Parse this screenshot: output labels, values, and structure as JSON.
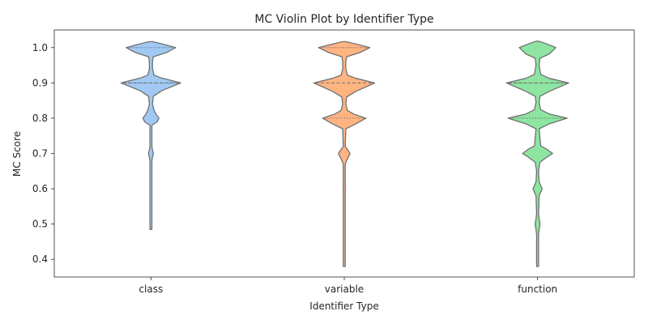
{
  "chart_data": {
    "type": "violin",
    "title": "MC Violin Plot by Identifier Type",
    "xlabel": "Identifier Type",
    "ylabel": "MC Score",
    "ylim": [
      0.35,
      1.05
    ],
    "yticks": [
      0.4,
      0.5,
      0.6,
      0.7,
      0.8,
      0.9,
      1.0
    ],
    "ytick_labels": [
      "0.4",
      "0.5",
      "0.6",
      "0.7",
      "0.8",
      "0.9",
      "1.0"
    ],
    "categories": [
      "class",
      "variable",
      "function"
    ],
    "grid": false,
    "colors": {
      "class": "#a1c9f4",
      "variable": "#ffb482",
      "function": "#8de5a1",
      "outline": "#707070"
    },
    "violins": [
      {
        "category": "class",
        "y_min": 0.485,
        "y_max": 1.017,
        "q1": 0.9,
        "median": 0.9,
        "q3": 1.0,
        "profile": [
          [
            0.485,
            0.004
          ],
          [
            0.59,
            0.006
          ],
          [
            0.6,
            0.012
          ],
          [
            0.61,
            0.006
          ],
          [
            0.68,
            0.006
          ],
          [
            0.69,
            0.02
          ],
          [
            0.7,
            0.032
          ],
          [
            0.71,
            0.02
          ],
          [
            0.72,
            0.006
          ],
          [
            0.78,
            0.01
          ],
          [
            0.79,
            0.08
          ],
          [
            0.8,
            0.103
          ],
          [
            0.81,
            0.07
          ],
          [
            0.822,
            0.04
          ],
          [
            0.84,
            0.02
          ],
          [
            0.862,
            0.03
          ],
          [
            0.878,
            0.14
          ],
          [
            0.9,
            0.384
          ],
          [
            0.915,
            0.12
          ],
          [
            0.922,
            0.04
          ],
          [
            0.94,
            0.02
          ],
          [
            0.96,
            0.02
          ],
          [
            0.974,
            0.03
          ],
          [
            0.986,
            0.2
          ],
          [
            1.0,
            0.318
          ],
          [
            1.01,
            0.15
          ],
          [
            1.017,
            0.02
          ]
        ]
      },
      {
        "category": "variable",
        "y_min": 0.38,
        "y_max": 1.017,
        "q1": 0.8,
        "median": 0.9,
        "q3": 1.0,
        "profile": [
          [
            0.38,
            0.004
          ],
          [
            0.49,
            0.005
          ],
          [
            0.5,
            0.008
          ],
          [
            0.51,
            0.005
          ],
          [
            0.59,
            0.006
          ],
          [
            0.6,
            0.014
          ],
          [
            0.61,
            0.006
          ],
          [
            0.67,
            0.008
          ],
          [
            0.68,
            0.03
          ],
          [
            0.7,
            0.075
          ],
          [
            0.715,
            0.03
          ],
          [
            0.72,
            0.01
          ],
          [
            0.77,
            0.02
          ],
          [
            0.784,
            0.15
          ],
          [
            0.8,
            0.278
          ],
          [
            0.812,
            0.12
          ],
          [
            0.822,
            0.04
          ],
          [
            0.84,
            0.02
          ],
          [
            0.86,
            0.03
          ],
          [
            0.876,
            0.15
          ],
          [
            0.9,
            0.391
          ],
          [
            0.913,
            0.15
          ],
          [
            0.922,
            0.04
          ],
          [
            0.94,
            0.02
          ],
          [
            0.96,
            0.02
          ],
          [
            0.974,
            0.03
          ],
          [
            0.986,
            0.2
          ],
          [
            1.0,
            0.33
          ],
          [
            1.01,
            0.15
          ],
          [
            1.017,
            0.02
          ]
        ]
      },
      {
        "category": "function",
        "y_min": 0.38,
        "y_max": 1.018,
        "q1": 0.8,
        "median": 0.9,
        "q3": 0.9,
        "profile": [
          [
            0.38,
            0.004
          ],
          [
            0.47,
            0.01
          ],
          [
            0.485,
            0.02
          ],
          [
            0.5,
            0.032
          ],
          [
            0.515,
            0.02
          ],
          [
            0.53,
            0.01
          ],
          [
            0.58,
            0.02
          ],
          [
            0.6,
            0.059
          ],
          [
            0.62,
            0.02
          ],
          [
            0.65,
            0.01
          ],
          [
            0.675,
            0.03
          ],
          [
            0.69,
            0.12
          ],
          [
            0.7,
            0.193
          ],
          [
            0.712,
            0.12
          ],
          [
            0.722,
            0.04
          ],
          [
            0.77,
            0.02
          ],
          [
            0.784,
            0.15
          ],
          [
            0.8,
            0.38
          ],
          [
            0.812,
            0.15
          ],
          [
            0.824,
            0.04
          ],
          [
            0.845,
            0.02
          ],
          [
            0.862,
            0.03
          ],
          [
            0.876,
            0.15
          ],
          [
            0.9,
            0.4
          ],
          [
            0.913,
            0.15
          ],
          [
            0.924,
            0.04
          ],
          [
            0.95,
            0.02
          ],
          [
            0.97,
            0.03
          ],
          [
            0.982,
            0.15
          ],
          [
            1.0,
            0.235
          ],
          [
            1.012,
            0.1
          ],
          [
            1.018,
            0.02
          ]
        ]
      }
    ]
  }
}
